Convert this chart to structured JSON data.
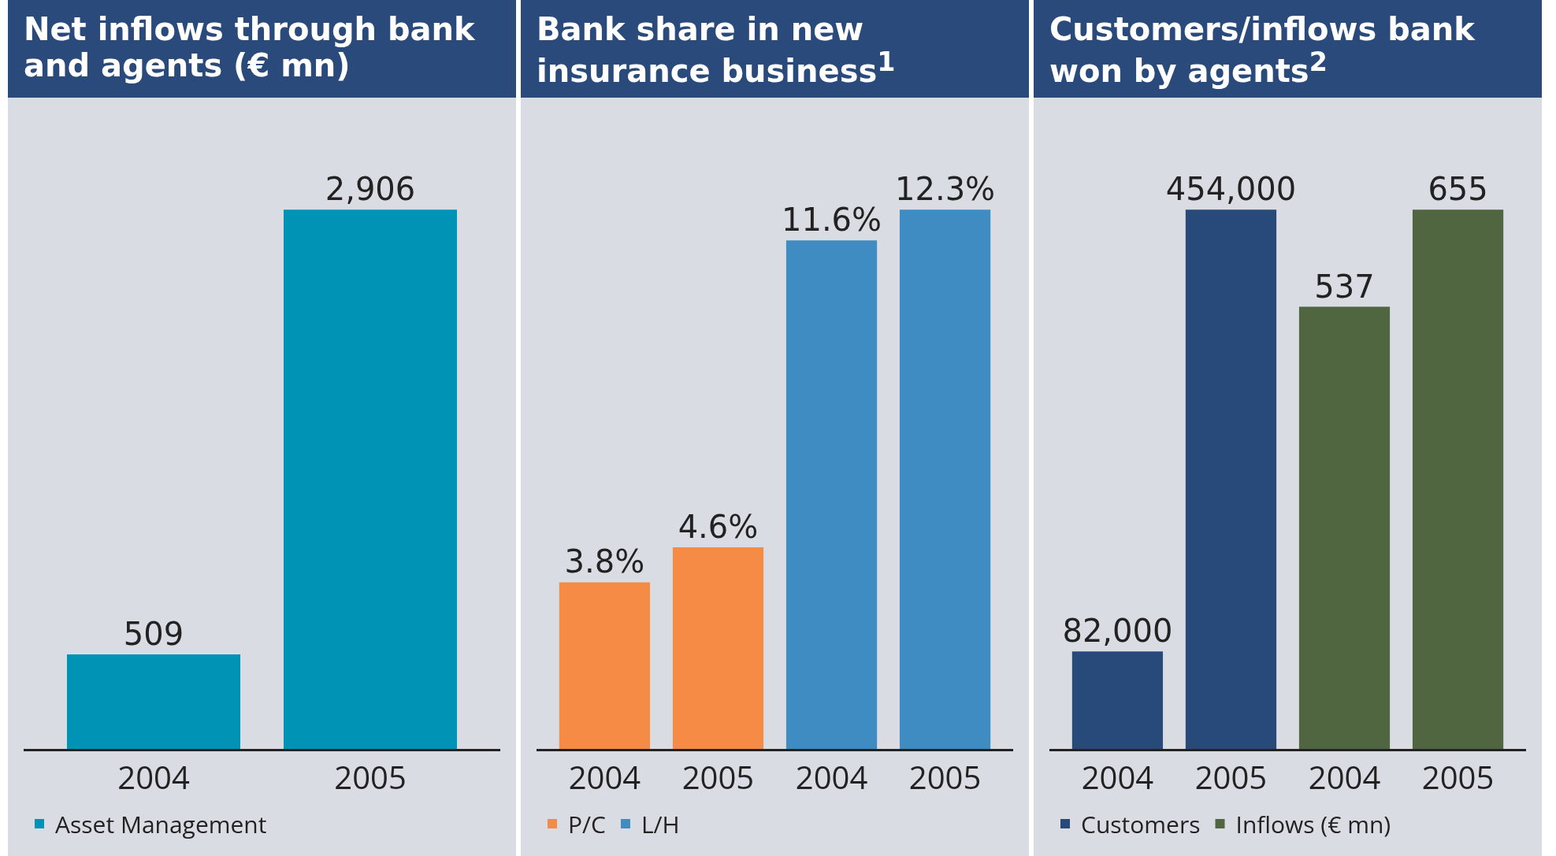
{
  "chart_data": [
    {
      "type": "bar",
      "title": "Net inflows through bank and agents (€ mn)",
      "categories": [
        "2004",
        "2005"
      ],
      "series": [
        {
          "name": "Asset Management",
          "color": "#0093b5",
          "values": [
            509,
            2906
          ],
          "value_labels": [
            "509",
            "2,906"
          ]
        }
      ],
      "legend": "bottom",
      "tick_labels": "x"
    },
    {
      "type": "bar",
      "title": "Bank share in new insurance business$^{1}$",
      "categories": [
        "2004",
        "2005",
        "2004",
        "2005"
      ],
      "series": [
        {
          "name": "P/C",
          "color": "#f58b45",
          "values": [
            3.8,
            4.6,
            null,
            null
          ],
          "value_labels": [
            "3.8%",
            "4.6%",
            null,
            null
          ]
        },
        {
          "name": "L/H",
          "color": "#3f8cc2",
          "values": [
            null,
            null,
            11.6,
            12.3
          ],
          "value_labels": [
            null,
            null,
            "11.6%",
            "12.3%"
          ]
        }
      ],
      "legend": "bottom",
      "tick_labels": "x"
    },
    {
      "type": "bar",
      "title": "Customers/inflows bank won by agents$^{2}$",
      "categories": [
        "2004",
        "2005",
        "2004",
        "2005"
      ],
      "series": [
        {
          "name": "Customers",
          "color": "#284a7a",
          "values": [
            82000,
            454000,
            null,
            null
          ],
          "value_labels": [
            "82,000",
            "454,000",
            null,
            null
          ]
        },
        {
          "name": "Inflows (€ mn)",
          "color": "#506640",
          "axis": "y2",
          "values": [
            null,
            null,
            537,
            655
          ],
          "value_labels": [
            null,
            null,
            "537",
            "655"
          ]
        }
      ],
      "legend": "bottom",
      "tick_labels": "x"
    }
  ]
}
